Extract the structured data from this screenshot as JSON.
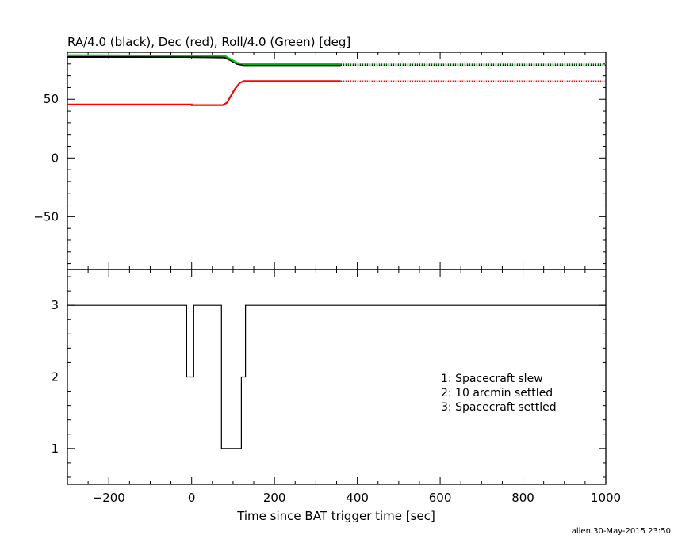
{
  "chart_data": [
    {
      "type": "line",
      "title": "RA/4.0 (black), Dec (red), Roll/4.0 (Green) [deg]",
      "xlim": [
        -300,
        1000
      ],
      "ylim": [
        -95,
        90
      ],
      "yticks": [
        "50",
        "0",
        "−50"
      ],
      "series": [
        {
          "color": "#000000",
          "x": [
            -300,
            -10,
            80,
            95,
            110,
            125,
            360
          ],
          "y": [
            86,
            86,
            85.5,
            83,
            80,
            79,
            79
          ],
          "dotted_x": [
            360,
            1000
          ],
          "dotted_y": [
            79,
            79
          ]
        },
        {
          "color": "#ff0000",
          "x": [
            -300,
            0,
            0,
            75,
            85,
            95,
            105,
            115,
            125,
            360
          ],
          "y": [
            45.6,
            45.6,
            45,
            45,
            47,
            53,
            59,
            63.5,
            65.5,
            65.5
          ],
          "dotted_x": [
            360,
            1000
          ],
          "dotted_y": [
            65.5,
            65.5
          ]
        },
        {
          "color": "#00cc00",
          "x": [
            -300,
            80,
            95,
            110,
            125,
            360
          ],
          "y": [
            87.5,
            87,
            84,
            81,
            80,
            80
          ],
          "dotted_x": [
            360,
            1000
          ],
          "dotted_y": [
            80,
            80
          ]
        }
      ]
    },
    {
      "type": "line",
      "xlabel": "Time since BAT trigger time [sec]",
      "xlim": [
        -300,
        1000
      ],
      "ylim": [
        0.5,
        3.5
      ],
      "xticks": [
        "−200",
        "0",
        "200",
        "400",
        "600",
        "800",
        "1000"
      ],
      "yticks": [
        "3",
        "2",
        "1"
      ],
      "series": [
        {
          "color": "#000000",
          "x": [
            -300,
            -12,
            -12,
            5,
            5,
            72,
            72,
            120,
            120,
            130,
            130,
            1000
          ],
          "y": [
            3,
            3,
            2,
            2,
            3,
            3,
            1,
            1,
            2,
            2,
            3,
            3
          ]
        }
      ],
      "legend": [
        "1: Spacecraft slew",
        "2: 10 arcmin settled",
        "3: Spacecraft settled"
      ]
    }
  ],
  "footer": "allen 30-May-2015 23:50"
}
